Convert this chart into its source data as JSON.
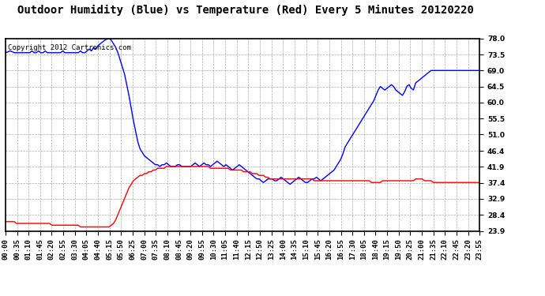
{
  "title": "Outdoor Humidity (Blue) vs Temperature (Red) Every 5 Minutes 20120220",
  "copyright_text": "Copyright 2012 Cartronics.com",
  "background_color": "#ffffff",
  "plot_bg_color": "#ffffff",
  "grid_color": "#aaaaaa",
  "y_ticks": [
    23.9,
    28.4,
    32.9,
    37.4,
    41.9,
    46.4,
    51.0,
    55.5,
    60.0,
    64.5,
    69.0,
    73.5,
    78.0
  ],
  "y_min": 23.9,
  "y_max": 78.0,
  "blue_color": "#0000ff",
  "red_color": "#ff0000",
  "title_fontsize": 10,
  "copyright_fontsize": 6.5,
  "tick_fontsize": 6.5,
  "x_tick_labels": [
    "00:00",
    "00:35",
    "01:10",
    "01:45",
    "02:20",
    "02:55",
    "03:30",
    "04:05",
    "04:40",
    "05:15",
    "05:50",
    "06:25",
    "07:00",
    "07:35",
    "08:10",
    "08:45",
    "09:20",
    "09:55",
    "10:30",
    "11:05",
    "11:40",
    "12:15",
    "12:50",
    "13:25",
    "14:00",
    "14:35",
    "15:10",
    "15:45",
    "16:20",
    "16:55",
    "17:30",
    "18:05",
    "18:40",
    "19:15",
    "19:50",
    "20:25",
    "21:00",
    "21:35",
    "22:10",
    "22:45",
    "23:20",
    "23:55"
  ],
  "humidity_data": [
    74.0,
    74.2,
    74.5,
    74.3,
    74.0,
    74.0,
    74.0,
    74.0,
    74.0,
    74.0,
    74.0,
    74.0,
    74.5,
    74.0,
    74.0,
    74.5,
    74.0,
    74.0,
    74.5,
    74.0,
    74.0,
    74.0,
    74.0,
    74.0,
    74.0,
    74.0,
    74.5,
    74.0,
    74.0,
    74.0,
    74.0,
    74.0,
    74.0,
    74.0,
    74.5,
    74.0,
    74.0,
    74.5,
    75.0,
    74.5,
    75.5,
    75.0,
    76.0,
    76.5,
    77.0,
    77.5,
    77.8,
    78.0,
    77.5,
    76.5,
    75.5,
    74.0,
    72.0,
    70.0,
    68.0,
    65.0,
    62.0,
    58.5,
    55.0,
    52.0,
    49.0,
    47.0,
    46.0,
    45.0,
    44.5,
    44.0,
    43.5,
    43.0,
    42.5,
    42.5,
    42.0,
    42.5,
    42.5,
    43.0,
    42.5,
    42.0,
    42.0,
    42.0,
    42.5,
    42.5,
    42.0,
    42.0,
    42.0,
    42.0,
    42.0,
    42.5,
    43.0,
    42.5,
    42.0,
    42.5,
    43.0,
    42.5,
    42.5,
    42.0,
    42.5,
    43.0,
    43.5,
    43.0,
    42.5,
    42.0,
    42.5,
    42.0,
    41.5,
    41.0,
    41.5,
    42.0,
    42.5,
    42.0,
    41.5,
    41.0,
    40.5,
    40.0,
    39.5,
    39.0,
    38.5,
    38.5,
    38.0,
    37.5,
    38.0,
    38.5,
    38.5,
    38.5,
    38.0,
    38.0,
    38.5,
    39.0,
    38.5,
    38.0,
    37.5,
    37.0,
    37.5,
    38.0,
    38.5,
    39.0,
    38.5,
    38.0,
    37.5,
    37.5,
    38.0,
    38.5,
    38.5,
    39.0,
    38.5,
    38.0,
    38.5,
    39.0,
    39.5,
    40.0,
    40.5,
    41.0,
    42.0,
    43.0,
    44.0,
    45.5,
    47.5,
    48.5,
    49.5,
    50.5,
    51.5,
    52.5,
    53.5,
    54.5,
    55.5,
    56.5,
    57.5,
    58.5,
    59.5,
    60.5,
    62.0,
    63.5,
    64.5,
    64.0,
    63.5,
    64.0,
    64.5,
    65.0,
    64.5,
    63.5,
    63.0,
    62.5,
    62.0,
    63.0,
    64.5,
    65.0,
    64.0,
    63.5,
    65.5,
    66.0,
    66.5,
    67.0,
    67.5,
    68.0,
    68.5,
    69.0,
    69.0,
    69.0,
    69.0,
    69.0,
    69.0,
    69.0,
    69.0,
    69.0,
    69.0,
    69.0,
    69.0,
    69.0,
    69.0,
    69.0,
    69.0,
    69.0,
    69.0,
    69.0,
    69.0,
    69.0,
    69.0,
    69.0
  ],
  "temp_data": [
    26.5,
    26.5,
    26.5,
    26.5,
    26.5,
    26.0,
    26.0,
    26.0,
    26.0,
    26.0,
    26.0,
    26.0,
    26.0,
    26.0,
    26.0,
    26.0,
    26.0,
    26.0,
    26.0,
    26.0,
    26.0,
    25.5,
    25.5,
    25.5,
    25.5,
    25.5,
    25.5,
    25.5,
    25.5,
    25.5,
    25.5,
    25.5,
    25.5,
    25.5,
    25.0,
    25.0,
    25.0,
    25.0,
    25.0,
    25.0,
    25.0,
    25.0,
    25.0,
    25.0,
    25.0,
    25.0,
    25.0,
    25.0,
    25.5,
    26.0,
    27.0,
    28.5,
    30.0,
    31.5,
    33.0,
    34.5,
    36.0,
    37.0,
    38.0,
    38.5,
    39.0,
    39.5,
    39.5,
    40.0,
    40.0,
    40.5,
    40.5,
    41.0,
    41.0,
    41.5,
    41.5,
    41.5,
    41.5,
    42.0,
    42.0,
    42.0,
    42.0,
    42.0,
    42.0,
    42.0,
    42.0,
    42.0,
    42.0,
    42.0,
    42.0,
    42.0,
    42.0,
    42.0,
    42.0,
    42.0,
    42.0,
    42.0,
    42.0,
    41.5,
    41.5,
    41.5,
    41.5,
    41.5,
    41.5,
    41.5,
    41.5,
    41.5,
    41.0,
    41.0,
    41.0,
    41.0,
    41.0,
    41.0,
    40.5,
    40.5,
    40.5,
    40.5,
    40.0,
    40.0,
    40.0,
    39.5,
    39.5,
    39.5,
    39.0,
    39.0,
    38.5,
    38.5,
    38.5,
    38.5,
    38.5,
    38.5,
    38.5,
    38.5,
    38.5,
    38.5,
    38.5,
    38.5,
    38.5,
    38.5,
    38.5,
    38.5,
    38.5,
    38.5,
    38.5,
    38.5,
    38.0,
    38.0,
    38.0,
    38.0,
    38.0,
    38.0,
    38.0,
    38.0,
    38.0,
    38.0,
    38.0,
    38.0,
    38.0,
    38.0,
    38.0,
    38.0,
    38.0,
    38.0,
    38.0,
    38.0,
    38.0,
    38.0,
    38.0,
    38.0,
    38.0,
    38.0,
    37.5,
    37.5,
    37.5,
    37.5,
    37.5,
    38.0,
    38.0,
    38.0,
    38.0,
    38.0,
    38.0,
    38.0,
    38.0,
    38.0,
    38.0,
    38.0,
    38.0,
    38.0,
    38.0,
    38.0,
    38.5,
    38.5,
    38.5,
    38.5,
    38.0,
    38.0,
    38.0,
    38.0,
    37.5,
    37.5,
    37.5,
    37.5,
    37.5,
    37.5,
    37.5,
    37.5,
    37.5,
    37.5,
    37.5,
    37.5,
    37.5,
    37.5,
    37.5,
    37.5,
    37.5,
    37.5,
    37.5,
    37.5,
    37.5,
    37.5
  ]
}
